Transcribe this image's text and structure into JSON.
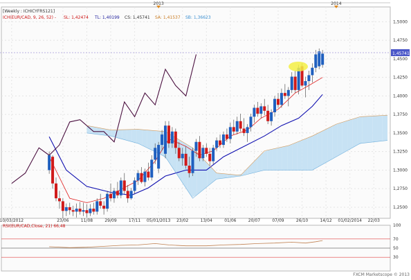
{
  "header": {
    "chart_title": "[Weekly : ICHICYFRS121]",
    "indicator_prefix": "ICH(EUR/CAD, 9, 26, 52) -",
    "sl": "SL: 1,42474",
    "tl": "TL: 1,40199",
    "cs": "CS: 1,45741",
    "sa": "SA: 1,41537",
    "sb": "SB: 1,36623"
  },
  "top_axis": {
    "labels": [
      "2013",
      "2014"
    ]
  },
  "price_axis": {
    "labels": [
      "1,5000",
      "1,4750",
      "1,4500",
      "1,4250",
      "1,4000",
      "1,3750",
      "1,3500",
      "1,3250",
      "1,3000",
      "1,2750",
      "1,2500"
    ]
  },
  "last_price_label": "1,45741",
  "date_axis": {
    "labels": [
      "10/03/2012",
      "23/06",
      "11/08",
      "29/09",
      "17/11",
      "05/01/2013",
      "23/02",
      "13/04",
      "01/06",
      "20/07",
      "07/09",
      "26/10",
      "14/12",
      "01/02/2014",
      "22/03"
    ]
  },
  "rsi": {
    "title": "RSI(EUR/CAD,Close, 21) 66,48",
    "scale_labels": [
      "100",
      "70",
      "50",
      "30"
    ]
  },
  "watermark": "FXCM Marketscope © 2013",
  "colors": {
    "bull": "#1f5fbf",
    "bear": "#d01a1a",
    "tenkan": "#e02020",
    "kijun": "#1010b0",
    "chikou": "#4b1040",
    "kumo_bull": "#c7e2f4",
    "kumo_bear": "#f6d5b8",
    "highlight": "#f3ef44"
  },
  "chart_data": {
    "type": "candlestick",
    "title": "[Weekly : ICHICYFRS121]",
    "symbol": "EUR/CAD",
    "timeframe": "Weekly",
    "ylim": [
      1.235,
      1.52
    ],
    "x_range": [
      "2012-02-18",
      "2014-04-19"
    ],
    "last_price": 1.45741,
    "candles": [
      [
        "2012-05-26",
        1.3,
        1.325,
        1.295,
        1.32
      ],
      [
        "2012-06-02",
        1.318,
        1.32,
        1.275,
        1.282
      ],
      [
        "2012-06-09",
        1.282,
        1.29,
        1.258,
        1.262
      ],
      [
        "2012-06-16",
        1.262,
        1.272,
        1.248,
        1.258
      ],
      [
        "2012-06-23",
        1.258,
        1.262,
        1.235,
        1.245
      ],
      [
        "2012-06-30",
        1.245,
        1.255,
        1.238,
        1.25
      ],
      [
        "2012-07-07",
        1.25,
        1.256,
        1.24,
        1.246
      ],
      [
        "2012-07-14",
        1.246,
        1.252,
        1.238,
        1.244
      ],
      [
        "2012-07-21",
        1.244,
        1.255,
        1.236,
        1.248
      ],
      [
        "2012-07-28",
        1.248,
        1.257,
        1.24,
        1.244
      ],
      [
        "2012-08-04",
        1.244,
        1.256,
        1.238,
        1.246
      ],
      [
        "2012-08-11",
        1.246,
        1.254,
        1.236,
        1.242
      ],
      [
        "2012-08-18",
        1.242,
        1.254,
        1.238,
        1.248
      ],
      [
        "2012-08-25",
        1.248,
        1.256,
        1.24,
        1.244
      ],
      [
        "2012-09-01",
        1.244,
        1.262,
        1.24,
        1.258
      ],
      [
        "2012-09-08",
        1.258,
        1.268,
        1.248,
        1.252
      ],
      [
        "2012-09-15",
        1.252,
        1.258,
        1.24,
        1.248
      ],
      [
        "2012-09-22",
        1.248,
        1.272,
        1.244,
        1.268
      ],
      [
        "2012-09-29",
        1.268,
        1.282,
        1.258,
        1.262
      ],
      [
        "2012-10-06",
        1.262,
        1.276,
        1.256,
        1.272
      ],
      [
        "2012-10-13",
        1.272,
        1.284,
        1.262,
        1.266
      ],
      [
        "2012-10-20",
        1.266,
        1.29,
        1.262,
        1.286
      ],
      [
        "2012-10-27",
        1.286,
        1.296,
        1.268,
        1.272
      ],
      [
        "2012-11-03",
        1.272,
        1.28,
        1.256,
        1.262
      ],
      [
        "2012-11-10",
        1.262,
        1.276,
        1.26,
        1.272
      ],
      [
        "2012-11-17",
        1.272,
        1.29,
        1.268,
        1.286
      ],
      [
        "2012-11-24",
        1.286,
        1.3,
        1.28,
        1.296
      ],
      [
        "2012-12-01",
        1.296,
        1.304,
        1.282,
        1.284
      ],
      [
        "2012-12-08",
        1.284,
        1.302,
        1.278,
        1.298
      ],
      [
        "2012-12-15",
        1.298,
        1.31,
        1.286,
        1.29
      ],
      [
        "2012-12-22",
        1.29,
        1.32,
        1.286,
        1.314
      ],
      [
        "2012-12-29",
        1.314,
        1.336,
        1.308,
        1.33
      ],
      [
        "2013-01-05",
        1.302,
        1.338,
        1.296,
        1.334
      ],
      [
        "2013-01-12",
        1.334,
        1.354,
        1.326,
        1.348
      ],
      [
        "2013-01-19",
        1.322,
        1.366,
        1.316,
        1.36
      ],
      [
        "2013-01-26",
        1.36,
        1.366,
        1.33,
        1.336
      ],
      [
        "2013-02-02",
        1.336,
        1.358,
        1.33,
        1.352
      ],
      [
        "2013-02-09",
        1.352,
        1.356,
        1.322,
        1.33
      ],
      [
        "2013-02-16",
        1.33,
        1.338,
        1.312,
        1.316
      ],
      [
        "2013-02-23",
        1.316,
        1.33,
        1.306,
        1.322
      ],
      [
        "2013-03-02",
        1.322,
        1.332,
        1.302,
        1.306
      ],
      [
        "2013-03-09",
        1.306,
        1.318,
        1.29,
        1.296
      ],
      [
        "2013-03-16",
        1.296,
        1.33,
        1.292,
        1.326
      ],
      [
        "2013-03-23",
        1.326,
        1.342,
        1.318,
        1.338
      ],
      [
        "2013-03-30",
        1.338,
        1.346,
        1.312,
        1.316
      ],
      [
        "2013-04-06",
        1.316,
        1.334,
        1.312,
        1.33
      ],
      [
        "2013-04-13",
        1.33,
        1.336,
        1.318,
        1.322
      ],
      [
        "2013-04-20",
        1.322,
        1.33,
        1.306,
        1.312
      ],
      [
        "2013-04-27",
        1.312,
        1.334,
        1.308,
        1.33
      ],
      [
        "2013-05-04",
        1.33,
        1.344,
        1.326,
        1.34
      ],
      [
        "2013-05-11",
        1.34,
        1.348,
        1.33,
        1.334
      ],
      [
        "2013-05-18",
        1.334,
        1.352,
        1.33,
        1.348
      ],
      [
        "2013-05-25",
        1.348,
        1.356,
        1.338,
        1.342
      ],
      [
        "2013-06-01",
        1.342,
        1.364,
        1.336,
        1.358
      ],
      [
        "2013-06-08",
        1.358,
        1.368,
        1.348,
        1.352
      ],
      [
        "2013-06-15",
        1.352,
        1.372,
        1.348,
        1.366
      ],
      [
        "2013-06-22",
        1.366,
        1.376,
        1.352,
        1.356
      ],
      [
        "2013-06-29",
        1.356,
        1.37,
        1.346,
        1.35
      ],
      [
        "2013-07-06",
        1.35,
        1.362,
        1.338,
        1.358
      ],
      [
        "2013-07-13",
        1.358,
        1.376,
        1.352,
        1.372
      ],
      [
        "2013-07-20",
        1.372,
        1.388,
        1.364,
        1.384
      ],
      [
        "2013-07-27",
        1.384,
        1.392,
        1.372,
        1.376
      ],
      [
        "2013-08-03",
        1.376,
        1.39,
        1.37,
        1.386
      ],
      [
        "2013-08-10",
        1.386,
        1.396,
        1.374,
        1.38
      ],
      [
        "2013-08-17",
        1.38,
        1.388,
        1.362,
        1.366
      ],
      [
        "2013-08-24",
        1.366,
        1.382,
        1.36,
        1.378
      ],
      [
        "2013-08-31",
        1.378,
        1.4,
        1.372,
        1.396
      ],
      [
        "2013-09-07",
        1.396,
        1.404,
        1.384,
        1.388
      ],
      [
        "2013-09-14",
        1.388,
        1.41,
        1.384,
        1.404
      ],
      [
        "2013-09-21",
        1.404,
        1.416,
        1.396,
        1.4
      ],
      [
        "2013-09-28",
        1.4,
        1.412,
        1.386,
        1.408
      ],
      [
        "2013-10-05",
        1.408,
        1.432,
        1.404,
        1.426
      ],
      [
        "2013-10-12",
        1.426,
        1.434,
        1.404,
        1.408
      ],
      [
        "2013-10-19",
        1.408,
        1.442,
        1.402,
        1.438
      ],
      [
        "2013-10-26",
        1.44,
        1.444,
        1.412,
        1.414
      ],
      [
        "2013-11-02",
        1.414,
        1.426,
        1.398,
        1.42
      ],
      [
        "2013-11-09",
        1.42,
        1.434,
        1.408,
        1.428
      ],
      [
        "2013-11-16",
        1.428,
        1.444,
        1.418,
        1.438
      ],
      [
        "2013-11-23",
        1.438,
        1.462,
        1.432,
        1.456
      ],
      [
        "2013-11-30",
        1.44,
        1.464,
        1.436,
        1.46
      ],
      [
        "2013-12-07",
        1.442,
        1.462,
        1.438,
        1.457
      ]
    ],
    "series": [
      {
        "name": "Tenkan",
        "points": [
          [
            "2012-05-26",
            1.318
          ],
          [
            "2012-07-07",
            1.262
          ],
          [
            "2012-08-11",
            1.256
          ],
          [
            "2012-09-15",
            1.262
          ],
          [
            "2012-10-20",
            1.274
          ],
          [
            "2012-11-24",
            1.286
          ],
          [
            "2012-12-29",
            1.312
          ],
          [
            "2013-01-26",
            1.342
          ],
          [
            "2013-03-02",
            1.332
          ],
          [
            "2013-03-30",
            1.32
          ],
          [
            "2013-04-27",
            1.326
          ],
          [
            "2013-06-01",
            1.346
          ],
          [
            "2013-07-06",
            1.354
          ],
          [
            "2013-08-03",
            1.37
          ],
          [
            "2013-09-07",
            1.382
          ],
          [
            "2013-10-12",
            1.404
          ],
          [
            "2013-11-09",
            1.414
          ],
          [
            "2013-12-07",
            1.425
          ]
        ]
      },
      {
        "name": "Kijun",
        "points": [
          [
            "2012-05-26",
            1.345
          ],
          [
            "2012-06-30",
            1.3
          ],
          [
            "2012-08-11",
            1.278
          ],
          [
            "2012-09-29",
            1.27
          ],
          [
            "2012-11-10",
            1.266
          ],
          [
            "2012-12-15",
            1.276
          ],
          [
            "2013-01-19",
            1.292
          ],
          [
            "2013-03-02",
            1.3
          ],
          [
            "2013-04-13",
            1.3
          ],
          [
            "2013-05-18",
            1.318
          ],
          [
            "2013-06-29",
            1.332
          ],
          [
            "2013-08-10",
            1.346
          ],
          [
            "2013-09-14",
            1.36
          ],
          [
            "2013-10-19",
            1.37
          ],
          [
            "2013-11-16",
            1.386
          ],
          [
            "2013-12-07",
            1.402
          ]
        ]
      },
      {
        "name": "Chikou",
        "points": [
          [
            "2012-03-10",
            1.282
          ],
          [
            "2012-04-07",
            1.296
          ],
          [
            "2012-05-05",
            1.33
          ],
          [
            "2012-05-26",
            1.32
          ],
          [
            "2012-06-16",
            1.334
          ],
          [
            "2012-07-07",
            1.365
          ],
          [
            "2012-07-28",
            1.368
          ],
          [
            "2012-08-25",
            1.352
          ],
          [
            "2012-09-15",
            1.352
          ],
          [
            "2012-10-06",
            1.338
          ],
          [
            "2012-10-27",
            1.392
          ],
          [
            "2012-11-17",
            1.372
          ],
          [
            "2012-12-08",
            1.404
          ],
          [
            "2012-12-29",
            1.388
          ],
          [
            "2013-01-19",
            1.436
          ],
          [
            "2013-02-09",
            1.414
          ],
          [
            "2013-03-02",
            1.4
          ],
          [
            "2013-03-23",
            1.456
          ]
        ]
      },
      {
        "name": "Senkou A",
        "points": [
          [
            "2012-08-11",
            1.36
          ],
          [
            "2012-09-29",
            1.354
          ],
          [
            "2012-11-24",
            1.355
          ],
          [
            "2013-01-19",
            1.352
          ],
          [
            "2013-03-16",
            1.33
          ],
          [
            "2013-05-04",
            1.296
          ],
          [
            "2013-06-22",
            1.293
          ],
          [
            "2013-08-10",
            1.326
          ],
          [
            "2013-09-28",
            1.333
          ],
          [
            "2013-11-16",
            1.346
          ],
          [
            "2014-01-04",
            1.362
          ],
          [
            "2014-02-22",
            1.372
          ],
          [
            "2014-04-19",
            1.374
          ]
        ]
      },
      {
        "name": "Senkou B",
        "points": [
          [
            "2012-08-11",
            1.35
          ],
          [
            "2012-09-29",
            1.346
          ],
          [
            "2012-11-24",
            1.336
          ],
          [
            "2013-01-19",
            1.318
          ],
          [
            "2013-03-16",
            1.262
          ],
          [
            "2013-05-04",
            1.288
          ],
          [
            "2013-06-22",
            1.292
          ],
          [
            "2013-08-10",
            1.3
          ],
          [
            "2013-09-28",
            1.3
          ],
          [
            "2013-11-16",
            1.3
          ],
          [
            "2014-01-04",
            1.318
          ],
          [
            "2014-02-22",
            1.336
          ],
          [
            "2014-04-19",
            1.34
          ]
        ]
      }
    ],
    "rsi": {
      "name": "RSI(EUR/CAD,Close, 21)",
      "last": 66.48,
      "ylim": [
        0,
        100
      ],
      "levels": [
        70,
        50,
        30
      ],
      "points": [
        [
          "2012-05-26",
          53
        ],
        [
          "2012-07-07",
          51
        ],
        [
          "2012-08-11",
          52
        ],
        [
          "2012-09-15",
          54
        ],
        [
          "2012-10-20",
          56
        ],
        [
          "2012-11-24",
          57
        ],
        [
          "2012-12-29",
          60
        ],
        [
          "2013-01-26",
          57
        ],
        [
          "2013-03-02",
          55
        ],
        [
          "2013-04-13",
          55
        ],
        [
          "2013-05-18",
          57
        ],
        [
          "2013-06-22",
          58
        ],
        [
          "2013-07-27",
          60
        ],
        [
          "2013-08-31",
          61
        ],
        [
          "2013-10-05",
          63
        ],
        [
          "2013-11-02",
          61
        ],
        [
          "2013-11-23",
          64
        ],
        [
          "2013-12-07",
          66.48
        ]
      ]
    }
  }
}
